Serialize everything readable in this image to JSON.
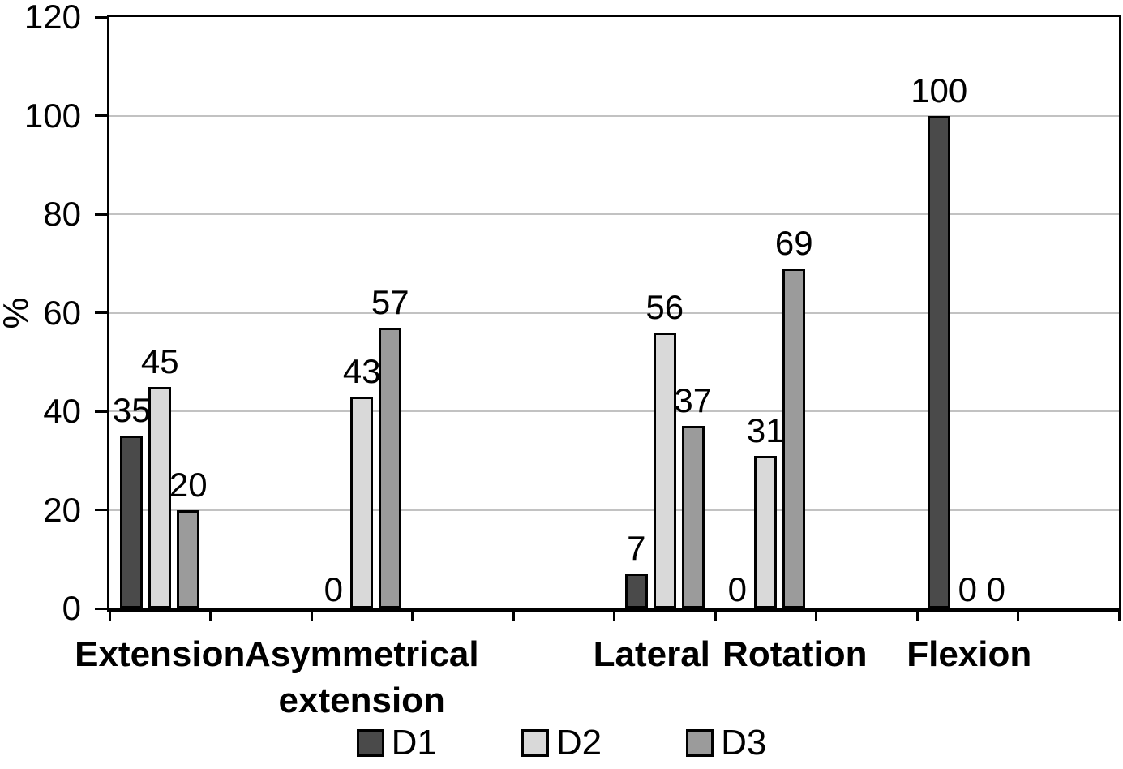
{
  "chart_data": {
    "type": "bar",
    "title": "",
    "xlabel": "",
    "ylabel": "%",
    "ylim": [
      0,
      120
    ],
    "yticks": [
      0,
      20,
      40,
      60,
      80,
      100,
      120
    ],
    "grid": "horizontal",
    "legend_position": "bottom",
    "value_labels_shown": true,
    "categories": [
      "Extension",
      "Asymmetrical extension",
      "Lateral",
      "Rotation",
      "Flexion"
    ],
    "series": [
      {
        "name": "D1",
        "color": "#4a4a4a",
        "values": [
          35,
          0,
          7,
          0,
          100
        ]
      },
      {
        "name": "D2",
        "color": "#d9d9d9",
        "values": [
          45,
          43,
          56,
          31,
          0
        ]
      },
      {
        "name": "D3",
        "color": "#9b9b9b",
        "values": [
          20,
          57,
          37,
          69,
          0
        ]
      }
    ],
    "layout_hints": {
      "num_slots": 10,
      "category_slots": [
        0,
        2,
        5,
        6,
        8
      ],
      "category_label_x_offsets": [
        0,
        0,
        -16,
        36,
        2
      ],
      "gridline_color": "#c2c2c2",
      "axis_color": "#000000",
      "bar_border_color": "#000000",
      "background": "#ffffff"
    }
  }
}
